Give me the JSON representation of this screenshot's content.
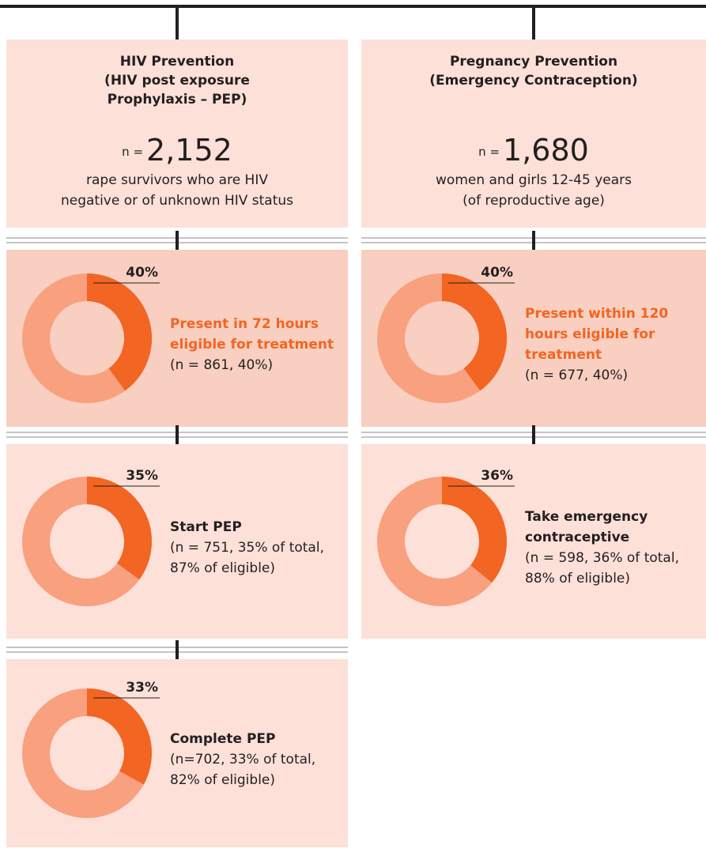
{
  "columns": [
    {
      "title": [
        "HIV Prevention",
        "(HIV post exposure",
        "Prophylaxis – PEP)"
      ],
      "n_prefix": "n =",
      "n": "2,152",
      "description": [
        "rape survivors who are HIV",
        "negative or of unknown HIV status"
      ],
      "steps": [
        {
          "value": 40,
          "value_label": "40%",
          "heading": [
            "Present in 72 hours",
            "eligible for treatment"
          ],
          "detail": [
            "(n = 861, 40%)"
          ],
          "highlight": true
        },
        {
          "value": 35,
          "value_label": "35%",
          "heading": [
            "Start PEP"
          ],
          "detail": [
            "(n = 751, 35% of total,",
            " 87% of eligible)"
          ],
          "highlight": false
        },
        {
          "value": 33,
          "value_label": "33%",
          "heading": [
            "Complete PEP"
          ],
          "detail": [
            "(n=702, 33% of total,",
            "82% of eligible)"
          ],
          "highlight": false
        }
      ]
    },
    {
      "title": [
        "Pregnancy Prevention",
        "(Emergency Contraception)"
      ],
      "n_prefix": "n =",
      "n": "1,680",
      "description": [
        "women and girls 12-45 years",
        "(of reproductive age)"
      ],
      "steps": [
        {
          "value": 40,
          "value_label": "40%",
          "heading": [
            "Present within 120",
            "hours eligible for",
            "treatment"
          ],
          "detail": [
            "(n = 677, 40%)"
          ],
          "highlight": true
        },
        {
          "value": 36,
          "value_label": "36%",
          "heading": [
            "Take emergency",
            "contraceptive"
          ],
          "detail": [
            "(n = 598, 36% of total,",
            "88% of eligible)"
          ],
          "highlight": false
        }
      ]
    }
  ]
}
